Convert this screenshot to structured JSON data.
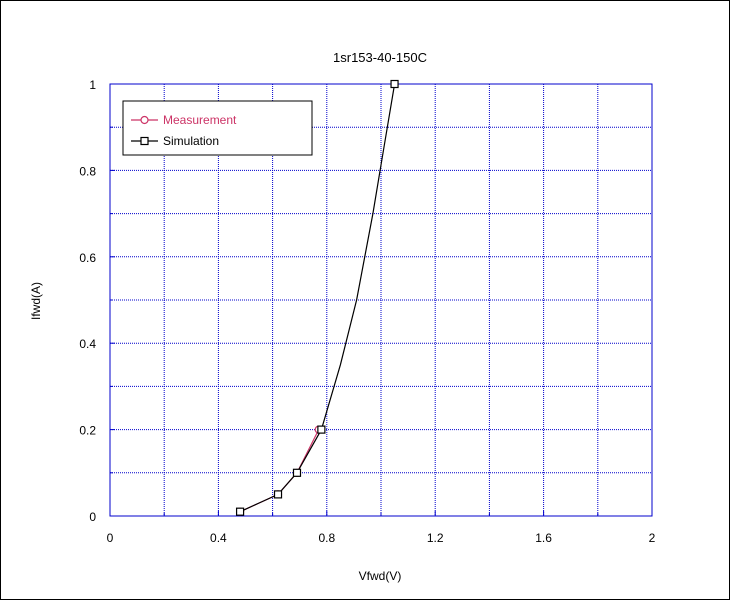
{
  "chart_data": {
    "type": "line",
    "title": "1sr153-40-150C",
    "xlabel": "Vfwd(V)",
    "ylabel": "Ifwd(A)",
    "xlim": [
      0,
      2
    ],
    "ylim": [
      0,
      1
    ],
    "xticks": [
      "0",
      "0.4",
      "0.8",
      "1.2",
      "1.6",
      "2"
    ],
    "yticks": [
      "0",
      "0.2",
      "0.4",
      "0.6",
      "0.8",
      "1"
    ],
    "grid": true,
    "legend_position": "top-left",
    "series": [
      {
        "name": "Measurement",
        "color": "#cc3366",
        "marker": "circle",
        "points": [
          [
            0.48,
            0.01
          ],
          [
            0.62,
            0.05
          ],
          [
            0.69,
            0.1
          ],
          [
            0.77,
            0.2
          ]
        ]
      },
      {
        "name": "Simulation",
        "color": "#000000",
        "marker": "square",
        "points": [
          [
            0.48,
            0.01
          ],
          [
            0.55,
            0.03
          ],
          [
            0.62,
            0.05
          ],
          [
            0.69,
            0.1
          ],
          [
            0.78,
            0.2
          ],
          [
            0.85,
            0.35
          ],
          [
            0.91,
            0.5
          ],
          [
            0.97,
            0.7
          ],
          [
            1.01,
            0.85
          ],
          [
            1.05,
            1.0
          ]
        ],
        "marked_points": [
          [
            0.48,
            0.01
          ],
          [
            0.62,
            0.05
          ],
          [
            0.69,
            0.1
          ],
          [
            0.78,
            0.2
          ],
          [
            1.05,
            1.0
          ]
        ]
      }
    ]
  },
  "colors": {
    "axis": "#0000cc",
    "grid": "#0000cc"
  }
}
